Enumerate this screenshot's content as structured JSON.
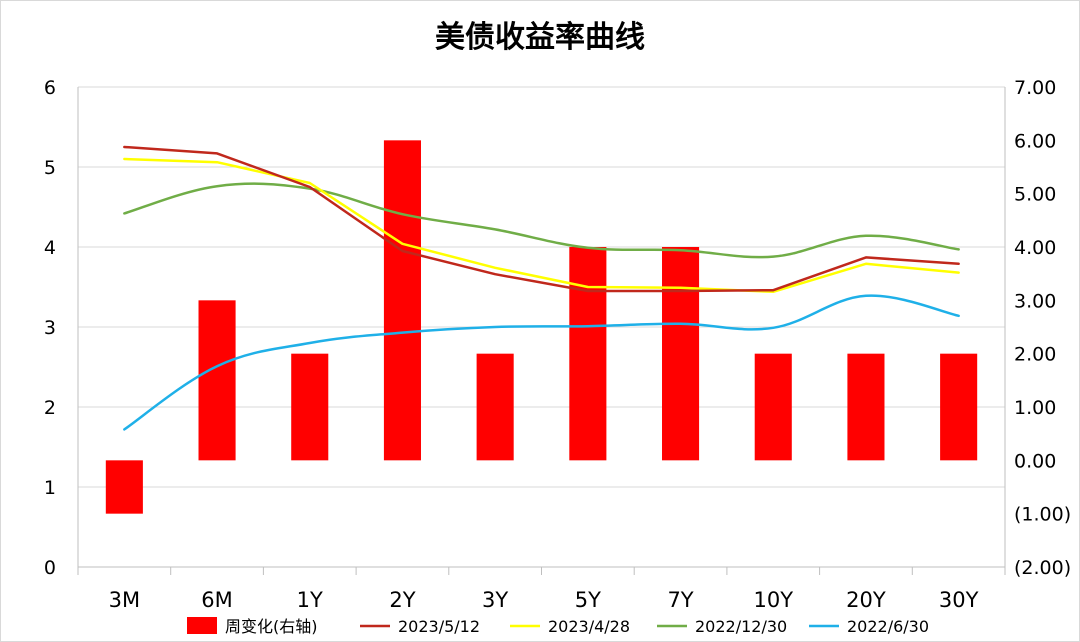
{
  "chart_data": {
    "type": "bar+line",
    "title": "美债收益率曲线",
    "categories": [
      "3M",
      "6M",
      "1Y",
      "2Y",
      "3Y",
      "5Y",
      "7Y",
      "10Y",
      "20Y",
      "30Y"
    ],
    "left_axis": {
      "range": [
        0,
        6
      ],
      "ticks": [
        0,
        1,
        2,
        3,
        4,
        5,
        6
      ],
      "tick_labels": [
        "0",
        "1",
        "2",
        "3",
        "4",
        "5",
        "6"
      ]
    },
    "right_axis": {
      "range": [
        -2,
        7
      ],
      "ticks": [
        -2,
        -1,
        0,
        1,
        2,
        3,
        4,
        5,
        6,
        7
      ],
      "tick_labels": [
        "(2.00)",
        "(1.00)",
        "0.00",
        "1.00",
        "2.00",
        "3.00",
        "4.00",
        "5.00",
        "6.00",
        "7.00"
      ],
      "negative_label_color": "#ff0000"
    },
    "bar_series": {
      "name": "周变化(右轴)",
      "axis": "right",
      "color": "#ff0000",
      "values": [
        -1,
        3,
        2,
        6,
        2,
        4,
        4,
        2,
        2,
        2
      ]
    },
    "line_series": [
      {
        "name": "2023/5/12",
        "axis": "left",
        "color": "#c0281c",
        "values": [
          5.25,
          5.17,
          4.75,
          3.95,
          3.66,
          3.45,
          3.45,
          3.46,
          3.87,
          3.79
        ]
      },
      {
        "name": "2023/4/28",
        "axis": "left",
        "color": "#ffff00",
        "values": [
          5.1,
          5.06,
          4.8,
          4.04,
          3.74,
          3.5,
          3.49,
          3.44,
          3.79,
          3.68
        ]
      },
      {
        "name": "2022/12/30",
        "axis": "left",
        "color": "#70ad47",
        "values": [
          4.42,
          4.76,
          4.73,
          4.41,
          4.22,
          3.99,
          3.96,
          3.88,
          4.14,
          3.97
        ]
      },
      {
        "name": "2022/6/30",
        "axis": "left",
        "color": "#1fb0e8",
        "values": [
          1.72,
          2.51,
          2.8,
          2.93,
          3.0,
          3.01,
          3.04,
          2.99,
          3.39,
          3.14
        ]
      }
    ],
    "grid": "horizontal",
    "legend_position": "bottom"
  }
}
